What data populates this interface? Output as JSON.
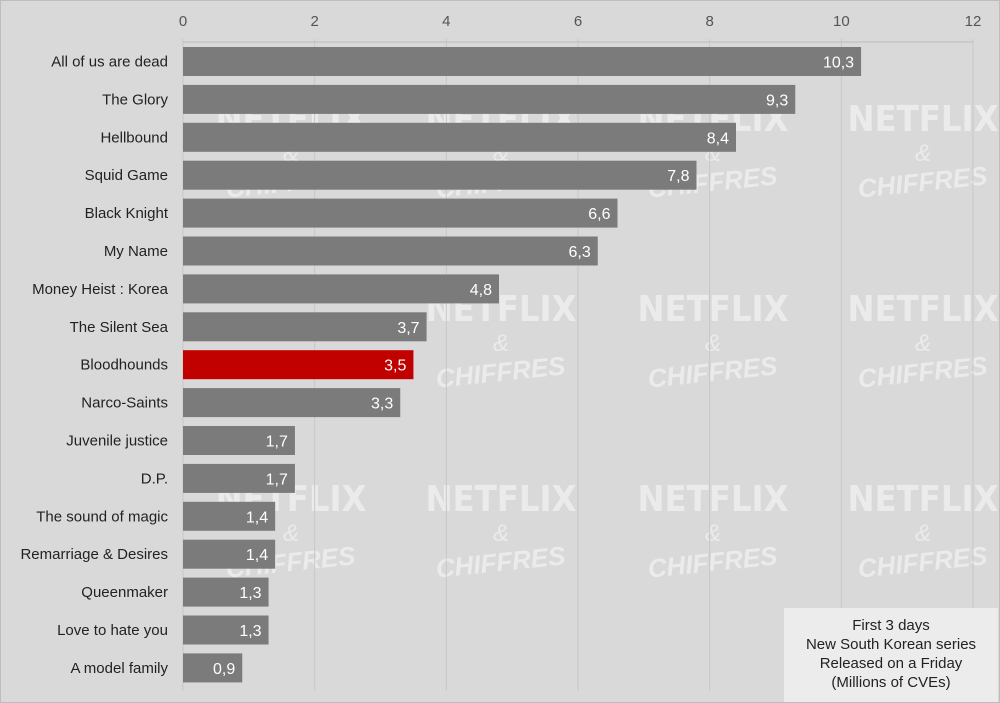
{
  "chart_data": {
    "type": "bar",
    "orientation": "horizontal",
    "categories": [
      "All of us are dead",
      "The Glory",
      "Hellbound",
      "Squid Game",
      "Black Knight",
      "My Name",
      "Money Heist : Korea",
      "The Silent Sea",
      "Bloodhounds",
      "Narco-Saints",
      "Juvenile justice",
      "D.P.",
      "The sound of magic",
      "Remarriage & Desires",
      "Queenmaker",
      "Love to hate you",
      "A model family"
    ],
    "values": [
      10.3,
      9.3,
      8.4,
      7.8,
      6.6,
      6.3,
      4.8,
      3.7,
      3.5,
      3.3,
      1.7,
      1.7,
      1.4,
      1.4,
      1.3,
      1.3,
      0.9
    ],
    "value_labels": [
      "10,3",
      "9,3",
      "8,4",
      "7,8",
      "6,6",
      "6,3",
      "4,8",
      "3,7",
      "3,5",
      "3,3",
      "1,7",
      "1,7",
      "1,4",
      "1,4",
      "1,3",
      "1,3",
      "0,9"
    ],
    "highlighted": "Bloodhounds",
    "xlim": [
      0,
      12
    ],
    "x_ticks": [
      "0",
      "2",
      "4",
      "6",
      "8",
      "10",
      "12"
    ],
    "x_axis_position": "top",
    "grid": true,
    "legend_placement": "bottom-right",
    "legend_lines": [
      "First 3 days",
      "New South Korean series",
      "Released on a Friday",
      "(Millions of CVEs)"
    ],
    "colors": {
      "bar": "#7b7b7b",
      "highlight": "#c10000",
      "background": "#d9d9d9"
    }
  },
  "watermark": {
    "line1": "NETFLIX",
    "line2": "&",
    "line3": "CHIFFRES"
  }
}
